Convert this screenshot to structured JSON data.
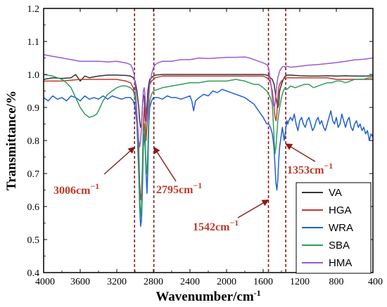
{
  "chart_data": {
    "type": "line",
    "xlabel": "Wavenumber/cm",
    "xlabel_sup": "-1",
    "ylabel": "Transmittance/%",
    "xlim": [
      4000,
      400
    ],
    "ylim": [
      0.4,
      1.2
    ],
    "x_reversed": true,
    "xticks": [
      4000,
      3600,
      3200,
      2800,
      2400,
      2000,
      1600,
      1200,
      800,
      400
    ],
    "xtick_labels": [
      "4000",
      "3600",
      "3200",
      "2800",
      "2400",
      "2000",
      "1600",
      "1200",
      "800",
      "400"
    ],
    "yticks": [
      0.4,
      0.5,
      0.6,
      0.7,
      0.8,
      0.9,
      1.0,
      1.1,
      1.2
    ],
    "ytick_labels": [
      "0.4",
      "0.5",
      "0.6",
      "0.7",
      "0.8",
      "0.9",
      "1.0",
      "1.1",
      "1.2"
    ],
    "legend_position": "bottom-right",
    "grid": false,
    "vlines": [
      3006,
      2795,
      1542,
      1353
    ],
    "vline_color": "#8b1a1a",
    "annotations": [
      {
        "text": "3006cm",
        "sup": "−1",
        "target_x": 3006,
        "target_y": 0.78
      },
      {
        "text": "2795cm",
        "sup": "−1",
        "target_x": 2795,
        "target_y": 0.78
      },
      {
        "text": "1542cm",
        "sup": "−1",
        "target_x": 1542,
        "target_y": 0.62
      },
      {
        "text": "1353cm",
        "sup": "−1",
        "target_x": 1353,
        "target_y": 0.79
      }
    ],
    "series": [
      {
        "name": "VA",
        "color": "#333333",
        "x": [
          4000,
          3900,
          3800,
          3700,
          3650,
          3600,
          3550,
          3500,
          3400,
          3300,
          3200,
          3100,
          3050,
          3020,
          3000,
          2980,
          2960,
          2950,
          2940,
          2930,
          2920,
          2910,
          2900,
          2890,
          2880,
          2870,
          2860,
          2850,
          2840,
          2820,
          2800,
          2780,
          2700,
          2600,
          2400,
          2200,
          2000,
          1800,
          1700,
          1600,
          1560,
          1540,
          1520,
          1500,
          1480,
          1460,
          1440,
          1430,
          1420,
          1400,
          1380,
          1370,
          1360,
          1350,
          1340,
          1320,
          1300,
          1250,
          1200,
          1100,
          1000,
          900,
          800,
          700,
          600,
          500,
          400
        ],
        "y": [
          0.985,
          0.99,
          0.988,
          0.99,
          1.0,
          0.98,
          0.995,
          0.99,
          0.995,
          0.998,
          0.998,
          0.997,
          0.995,
          0.99,
          0.98,
          0.95,
          0.9,
          0.86,
          0.84,
          0.85,
          0.9,
          0.94,
          0.93,
          0.88,
          0.86,
          0.9,
          0.95,
          0.97,
          0.985,
          0.99,
          0.995,
          0.998,
          1.0,
          1.0,
          1.0,
          1.0,
          1.0,
          1.0,
          1.0,
          1.0,
          0.998,
          0.995,
          0.99,
          0.985,
          0.97,
          0.93,
          0.9,
          0.91,
          0.95,
          0.97,
          0.985,
          0.99,
          0.995,
          0.995,
          0.998,
          0.998,
          0.998,
          0.997,
          0.996,
          0.995,
          0.995,
          0.996,
          0.995,
          0.996,
          0.995,
          0.995,
          0.995
        ]
      },
      {
        "name": "HGA",
        "color": "#c0392b",
        "x": [
          4000,
          3900,
          3800,
          3600,
          3400,
          3200,
          3100,
          3050,
          3020,
          3000,
          2980,
          2960,
          2950,
          2940,
          2930,
          2920,
          2910,
          2900,
          2890,
          2880,
          2870,
          2860,
          2850,
          2840,
          2830,
          2820,
          2800,
          2780,
          2700,
          2600,
          2400,
          2200,
          2000,
          1800,
          1700,
          1600,
          1560,
          1540,
          1520,
          1500,
          1480,
          1470,
          1460,
          1450,
          1440,
          1430,
          1420,
          1400,
          1380,
          1360,
          1340,
          1300,
          1200,
          1100,
          1000,
          900,
          800,
          700,
          600,
          500,
          400
        ],
        "y": [
          0.98,
          0.98,
          0.98,
          0.985,
          0.985,
          0.985,
          0.98,
          0.975,
          0.96,
          0.93,
          0.88,
          0.78,
          0.67,
          0.62,
          0.64,
          0.72,
          0.85,
          0.9,
          0.86,
          0.8,
          0.85,
          0.92,
          0.95,
          0.97,
          0.975,
          0.98,
          0.985,
          0.99,
          0.995,
          0.995,
          0.995,
          0.995,
          0.995,
          0.995,
          0.995,
          0.995,
          0.99,
          0.985,
          0.975,
          0.95,
          0.9,
          0.87,
          0.86,
          0.88,
          0.93,
          0.96,
          0.97,
          0.98,
          0.985,
          0.99,
          0.99,
          0.99,
          0.99,
          0.99,
          0.99,
          0.99,
          0.985,
          0.985,
          0.985,
          0.985,
          0.985
        ]
      },
      {
        "name": "WRA",
        "color": "#1f5fd6",
        "x": [
          4000,
          3950,
          3900,
          3850,
          3800,
          3750,
          3700,
          3650,
          3600,
          3550,
          3500,
          3450,
          3400,
          3350,
          3300,
          3250,
          3200,
          3150,
          3100,
          3050,
          3020,
          3000,
          2980,
          2960,
          2950,
          2940,
          2930,
          2920,
          2910,
          2900,
          2890,
          2880,
          2870,
          2860,
          2850,
          2840,
          2820,
          2800,
          2750,
          2700,
          2650,
          2600,
          2550,
          2500,
          2450,
          2400,
          2380,
          2360,
          2340,
          2300,
          2250,
          2200,
          2150,
          2100,
          2050,
          2000,
          1950,
          1900,
          1850,
          1800,
          1750,
          1700,
          1650,
          1600,
          1580,
          1560,
          1540,
          1520,
          1500,
          1490,
          1480,
          1470,
          1460,
          1450,
          1440,
          1430,
          1420,
          1410,
          1400,
          1390,
          1380,
          1370,
          1360,
          1350,
          1340,
          1330,
          1320,
          1300,
          1280,
          1260,
          1240,
          1220,
          1200,
          1180,
          1160,
          1140,
          1120,
          1100,
          1080,
          1060,
          1040,
          1020,
          1000,
          980,
          960,
          940,
          920,
          900,
          880,
          860,
          840,
          820,
          800,
          780,
          760,
          740,
          720,
          700,
          680,
          660,
          640,
          620,
          600,
          580,
          560,
          540,
          520,
          500,
          480,
          460,
          440,
          420,
          400
        ],
        "y": [
          0.93,
          0.92,
          0.935,
          0.925,
          0.93,
          0.92,
          0.935,
          0.93,
          0.92,
          0.935,
          0.925,
          0.93,
          0.925,
          0.935,
          0.925,
          0.935,
          0.93,
          0.925,
          0.93,
          0.93,
          0.92,
          0.9,
          0.85,
          0.7,
          0.6,
          0.54,
          0.56,
          0.65,
          0.78,
          0.82,
          0.78,
          0.7,
          0.64,
          0.72,
          0.85,
          0.9,
          0.92,
          0.93,
          0.93,
          0.925,
          0.935,
          0.93,
          0.93,
          0.925,
          0.93,
          0.935,
          0.92,
          0.89,
          0.92,
          0.93,
          0.94,
          0.935,
          0.95,
          0.945,
          0.955,
          0.95,
          0.945,
          0.94,
          0.935,
          0.93,
          0.92,
          0.91,
          0.89,
          0.87,
          0.86,
          0.85,
          0.85,
          0.84,
          0.82,
          0.8,
          0.77,
          0.72,
          0.67,
          0.65,
          0.68,
          0.74,
          0.78,
          0.8,
          0.82,
          0.84,
          0.82,
          0.8,
          0.82,
          0.84,
          0.86,
          0.85,
          0.86,
          0.87,
          0.86,
          0.88,
          0.85,
          0.83,
          0.86,
          0.87,
          0.85,
          0.84,
          0.86,
          0.87,
          0.85,
          0.83,
          0.84,
          0.86,
          0.87,
          0.85,
          0.86,
          0.84,
          0.83,
          0.85,
          0.87,
          0.89,
          0.86,
          0.85,
          0.87,
          0.84,
          0.85,
          0.88,
          0.86,
          0.84,
          0.86,
          0.87,
          0.84,
          0.83,
          0.85,
          0.86,
          0.84,
          0.85,
          0.83,
          0.84,
          0.82,
          0.83,
          0.8,
          0.82,
          0.81
        ]
      },
      {
        "name": "SBA",
        "color": "#2e9e5b",
        "x": [
          4000,
          3900,
          3800,
          3750,
          3700,
          3650,
          3600,
          3550,
          3500,
          3450,
          3420,
          3400,
          3350,
          3300,
          3250,
          3200,
          3150,
          3100,
          3050,
          3020,
          3000,
          2980,
          2960,
          2950,
          2940,
          2930,
          2920,
          2910,
          2900,
          2890,
          2880,
          2870,
          2860,
          2850,
          2840,
          2820,
          2800,
          2700,
          2600,
          2500,
          2400,
          2300,
          2200,
          2100,
          2000,
          1900,
          1800,
          1750,
          1700,
          1650,
          1600,
          1580,
          1560,
          1540,
          1520,
          1500,
          1490,
          1480,
          1470,
          1460,
          1450,
          1440,
          1430,
          1420,
          1400,
          1380,
          1360,
          1340,
          1320,
          1300,
          1250,
          1200,
          1150,
          1100,
          1050,
          1000,
          950,
          900,
          850,
          800,
          750,
          700,
          650,
          600,
          550,
          500,
          450,
          400
        ],
        "y": [
          1.0,
          0.995,
          0.985,
          0.975,
          0.96,
          0.93,
          0.9,
          0.88,
          0.87,
          0.875,
          0.88,
          0.89,
          0.92,
          0.94,
          0.95,
          0.96,
          0.965,
          0.965,
          0.96,
          0.95,
          0.93,
          0.88,
          0.75,
          0.63,
          0.57,
          0.6,
          0.7,
          0.82,
          0.85,
          0.8,
          0.72,
          0.7,
          0.78,
          0.88,
          0.92,
          0.94,
          0.95,
          0.96,
          0.965,
          0.97,
          0.975,
          0.975,
          0.98,
          0.98,
          0.98,
          0.985,
          0.98,
          0.975,
          0.97,
          0.97,
          0.96,
          0.955,
          0.95,
          0.94,
          0.93,
          0.91,
          0.86,
          0.8,
          0.76,
          0.78,
          0.82,
          0.86,
          0.88,
          0.9,
          0.93,
          0.95,
          0.96,
          0.955,
          0.96,
          0.965,
          0.96,
          0.965,
          0.97,
          0.97,
          0.96,
          0.965,
          0.97,
          0.975,
          0.975,
          0.98,
          0.98,
          0.975,
          0.98,
          0.985,
          0.985,
          0.985,
          0.99,
          0.99
        ]
      },
      {
        "name": "HMA",
        "color": "#9b59d6",
        "x": [
          4000,
          3900,
          3800,
          3700,
          3600,
          3500,
          3400,
          3300,
          3200,
          3100,
          3050,
          3030,
          3010,
          3000,
          2990,
          2980,
          2970,
          2960,
          2950,
          2940,
          2930,
          2920,
          2910,
          2900,
          2890,
          2880,
          2870,
          2860,
          2850,
          2840,
          2820,
          2800,
          2780,
          2750,
          2700,
          2600,
          2500,
          2400,
          2300,
          2200,
          2100,
          2000,
          1900,
          1800,
          1750,
          1700,
          1650,
          1600,
          1560,
          1540,
          1530,
          1520,
          1510,
          1500,
          1490,
          1480,
          1470,
          1460,
          1450,
          1440,
          1430,
          1420,
          1410,
          1400,
          1380,
          1360,
          1340,
          1300,
          1200,
          1100,
          1000,
          900,
          800,
          700,
          600,
          500,
          400
        ],
        "y": [
          1.06,
          1.055,
          1.05,
          1.045,
          1.04,
          1.04,
          1.04,
          1.038,
          1.04,
          1.035,
          1.03,
          1.02,
          1.0,
          0.97,
          0.93,
          0.88,
          0.84,
          0.8,
          0.78,
          0.8,
          0.84,
          0.9,
          0.95,
          0.96,
          0.93,
          0.88,
          0.85,
          0.88,
          0.93,
          0.97,
          1.0,
          1.02,
          1.03,
          1.035,
          1.04,
          1.04,
          1.045,
          1.045,
          1.05,
          1.048,
          1.05,
          1.052,
          1.052,
          1.053,
          1.05,
          1.045,
          1.04,
          1.035,
          1.03,
          1.02,
          1.0,
          0.98,
          0.96,
          0.93,
          0.91,
          0.9,
          0.91,
          0.94,
          0.97,
          0.99,
          1.0,
          1.01,
          1.015,
          1.02,
          1.025,
          1.022,
          1.025,
          1.022,
          1.025,
          1.028,
          1.03,
          1.033,
          1.036,
          1.04,
          1.044,
          1.046,
          1.05
        ]
      }
    ]
  }
}
